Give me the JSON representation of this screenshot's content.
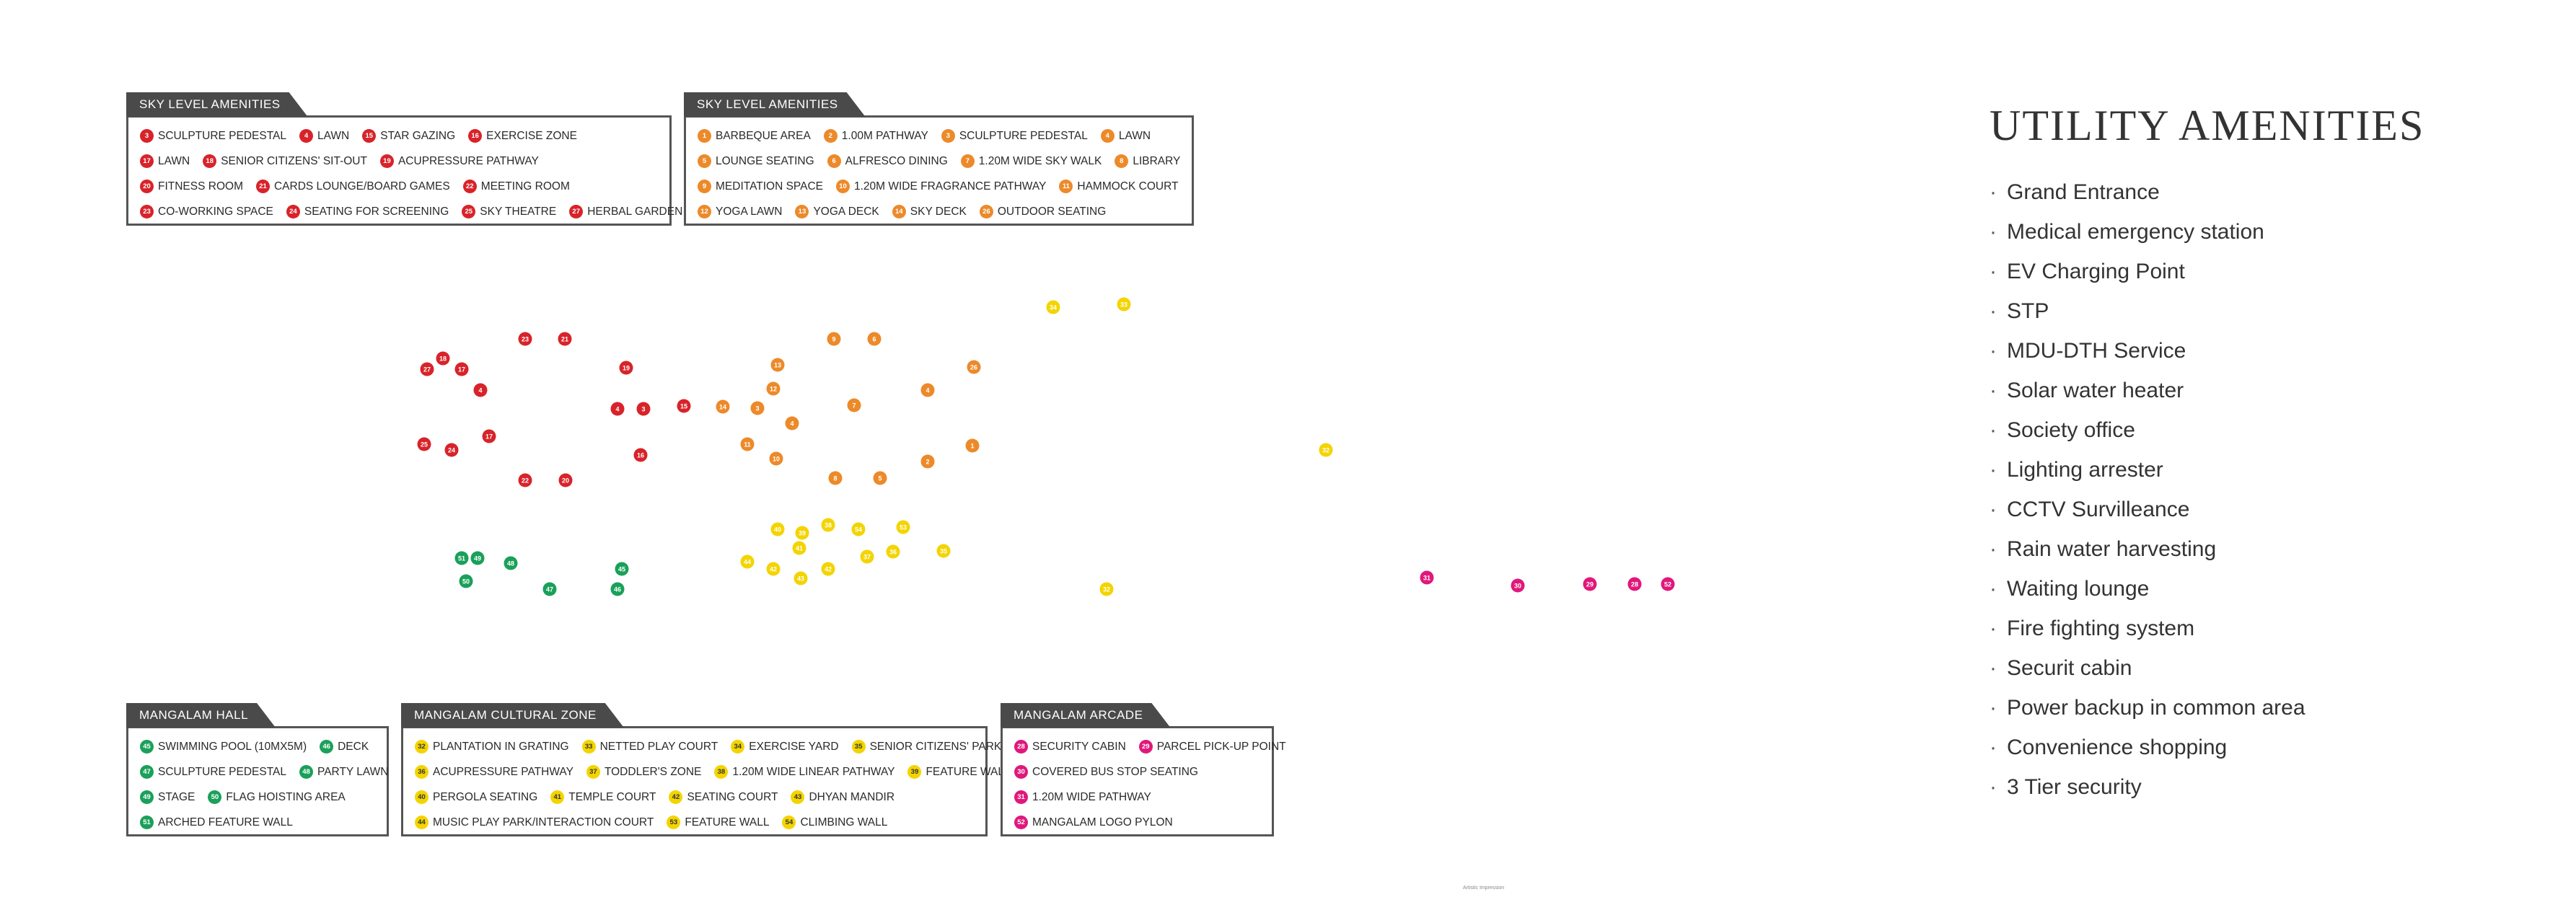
{
  "sky_left": {
    "title": "SKY LEVEL AMENITIES",
    "color": "#d8232a",
    "rows": [
      [
        {
          "n": "3",
          "t": "SCULPTURE PEDESTAL"
        },
        {
          "n": "4",
          "t": "LAWN"
        },
        {
          "n": "15",
          "t": "STAR GAZING"
        },
        {
          "n": "16",
          "t": "EXERCISE ZONE"
        }
      ],
      [
        {
          "n": "17",
          "t": "LAWN"
        },
        {
          "n": "18",
          "t": "SENIOR CITIZENS' SIT-OUT"
        },
        {
          "n": "19",
          "t": "ACUPRESSURE PATHWAY"
        }
      ],
      [
        {
          "n": "20",
          "t": "FITNESS ROOM"
        },
        {
          "n": "21",
          "t": "CARDS LOUNGE/BOARD GAMES"
        },
        {
          "n": "22",
          "t": "MEETING ROOM"
        }
      ],
      [
        {
          "n": "23",
          "t": "CO-WORKING SPACE"
        },
        {
          "n": "24",
          "t": "SEATING FOR SCREENING"
        },
        {
          "n": "25",
          "t": "SKY THEATRE"
        },
        {
          "n": "27",
          "t": "HERBAL GARDEN"
        }
      ]
    ]
  },
  "sky_right": {
    "title": "SKY LEVEL AMENITIES",
    "color": "#ec8a2a",
    "rows": [
      [
        {
          "n": "1",
          "t": "BARBEQUE AREA"
        },
        {
          "n": "2",
          "t": "1.00M PATHWAY"
        },
        {
          "n": "3",
          "t": "SCULPTURE PEDESTAL"
        },
        {
          "n": "4",
          "t": "LAWN"
        }
      ],
      [
        {
          "n": "5",
          "t": "LOUNGE SEATING"
        },
        {
          "n": "6",
          "t": "ALFRESCO DINING"
        },
        {
          "n": "7",
          "t": "1.20M WIDE SKY WALK"
        },
        {
          "n": "8",
          "t": "LIBRARY"
        }
      ],
      [
        {
          "n": "9",
          "t": "MEDITATION SPACE"
        },
        {
          "n": "10",
          "t": "1.20M WIDE FRAGRANCE PATHWAY"
        },
        {
          "n": "11",
          "t": "HAMMOCK COURT"
        }
      ],
      [
        {
          "n": "12",
          "t": "YOGA LAWN"
        },
        {
          "n": "13",
          "t": "YOGA DECK"
        },
        {
          "n": "14",
          "t": "SKY DECK"
        },
        {
          "n": "26",
          "t": "OUTDOOR SEATING"
        }
      ]
    ]
  },
  "hall": {
    "title": "MANGALAM HALL",
    "color": "#1aa05a",
    "rows": [
      [
        {
          "n": "45",
          "t": "SWIMMING POOL (10MX5M)"
        },
        {
          "n": "46",
          "t": "DECK"
        }
      ],
      [
        {
          "n": "47",
          "t": "SCULPTURE PEDESTAL"
        },
        {
          "n": "48",
          "t": "PARTY LAWN"
        }
      ],
      [
        {
          "n": "49",
          "t": "STAGE"
        },
        {
          "n": "50",
          "t": "FLAG HOISTING AREA"
        }
      ],
      [
        {
          "n": "51",
          "t": "ARCHED FEATURE WALL"
        }
      ]
    ]
  },
  "cultural": {
    "title": "MANGALAM CULTURAL ZONE",
    "color": "#f3d400",
    "rows": [
      [
        {
          "n": "32",
          "t": "PLANTATION IN GRATING"
        },
        {
          "n": "33",
          "t": "NETTED PLAY COURT"
        },
        {
          "n": "34",
          "t": "EXERCISE YARD"
        },
        {
          "n": "35",
          "t": "SENIOR CITIZENS' PARK"
        }
      ],
      [
        {
          "n": "36",
          "t": "ACUPRESSURE PATHWAY"
        },
        {
          "n": "37",
          "t": "TODDLER'S ZONE"
        },
        {
          "n": "38",
          "t": "1.20M WIDE LINEAR PATHWAY"
        },
        {
          "n": "39",
          "t": "FEATURE WALL"
        }
      ],
      [
        {
          "n": "40",
          "t": "PERGOLA SEATING"
        },
        {
          "n": "41",
          "t": "TEMPLE COURT"
        },
        {
          "n": "42",
          "t": "SEATING COURT"
        },
        {
          "n": "43",
          "t": "DHYAN MANDIR"
        }
      ],
      [
        {
          "n": "44",
          "t": "MUSIC PLAY PARK/INTERACTION COURT"
        },
        {
          "n": "53",
          "t": "FEATURE WALL"
        },
        {
          "n": "54",
          "t": "CLIMBING WALL"
        }
      ]
    ]
  },
  "arcade": {
    "title": "MANGALAM ARCADE",
    "color": "#e0187b",
    "rows": [
      [
        {
          "n": "28",
          "t": "SECURITY CABIN"
        },
        {
          "n": "29",
          "t": "PARCEL PICK-UP POINT"
        }
      ],
      [
        {
          "n": "30",
          "t": "COVERED BUS STOP SEATING"
        }
      ],
      [
        {
          "n": "31",
          "t": "1.20M WIDE PATHWAY"
        }
      ],
      [
        {
          "n": "52",
          "t": "MANGALAM LOGO PYLON"
        }
      ]
    ]
  },
  "utility": {
    "title": "UTILITY AMENITIES",
    "items": [
      "Grand Entrance",
      "Medical emergency station",
      "EV Charging Point",
      "STP",
      "MDU-DTH Service",
      "Solar water heater",
      "Society office",
      "Lighting arrester",
      "CCTV Survilleance",
      "Rain water harvesting",
      "Waiting lounge",
      "Fire fighting system",
      "Securit cabin",
      "Power backup in common area",
      "Convenience shopping",
      "3 Tier security"
    ]
  },
  "map_markers": [
    {
      "n": "23",
      "c": "red"
    },
    {
      "n": "21",
      "c": "red"
    },
    {
      "n": "18",
      "c": "red"
    },
    {
      "n": "27",
      "c": "red"
    },
    {
      "n": "17",
      "c": "red"
    },
    {
      "n": "19",
      "c": "red"
    },
    {
      "n": "4",
      "c": "red"
    },
    {
      "n": "4",
      "c": "red"
    },
    {
      "n": "3",
      "c": "red"
    },
    {
      "n": "15",
      "c": "red"
    },
    {
      "n": "25",
      "c": "red"
    },
    {
      "n": "24",
      "c": "red"
    },
    {
      "n": "17",
      "c": "red"
    },
    {
      "n": "16",
      "c": "red"
    },
    {
      "n": "22",
      "c": "red"
    },
    {
      "n": "20",
      "c": "red"
    },
    {
      "n": "9",
      "c": "orange"
    },
    {
      "n": "6",
      "c": "orange"
    },
    {
      "n": "13",
      "c": "orange"
    },
    {
      "n": "26",
      "c": "orange"
    },
    {
      "n": "12",
      "c": "orange"
    },
    {
      "n": "4",
      "c": "orange"
    },
    {
      "n": "14",
      "c": "orange"
    },
    {
      "n": "3",
      "c": "orange"
    },
    {
      "n": "7",
      "c": "orange"
    },
    {
      "n": "4",
      "c": "orange"
    },
    {
      "n": "11",
      "c": "orange"
    },
    {
      "n": "10",
      "c": "orange"
    },
    {
      "n": "1",
      "c": "orange"
    },
    {
      "n": "2",
      "c": "orange"
    },
    {
      "n": "8",
      "c": "orange"
    },
    {
      "n": "5",
      "c": "orange"
    },
    {
      "n": "34",
      "c": "yellow"
    },
    {
      "n": "33",
      "c": "yellow"
    },
    {
      "n": "32",
      "c": "yellow"
    },
    {
      "n": "40",
      "c": "yellow"
    },
    {
      "n": "39",
      "c": "yellow"
    },
    {
      "n": "38",
      "c": "yellow"
    },
    {
      "n": "54",
      "c": "yellow"
    },
    {
      "n": "53",
      "c": "yellow"
    },
    {
      "n": "41",
      "c": "yellow"
    },
    {
      "n": "36",
      "c": "yellow"
    },
    {
      "n": "35",
      "c": "yellow"
    },
    {
      "n": "37",
      "c": "yellow"
    },
    {
      "n": "44",
      "c": "yellow"
    },
    {
      "n": "42",
      "c": "yellow"
    },
    {
      "n": "42",
      "c": "yellow"
    },
    {
      "n": "43",
      "c": "yellow"
    },
    {
      "n": "32",
      "c": "yellow"
    },
    {
      "n": "51",
      "c": "green"
    },
    {
      "n": "49",
      "c": "green"
    },
    {
      "n": "48",
      "c": "green"
    },
    {
      "n": "50",
      "c": "green"
    },
    {
      "n": "47",
      "c": "green"
    },
    {
      "n": "45",
      "c": "green"
    },
    {
      "n": "46",
      "c": "green"
    },
    {
      "n": "31",
      "c": "pink"
    },
    {
      "n": "30",
      "c": "pink"
    },
    {
      "n": "29",
      "c": "pink"
    },
    {
      "n": "28",
      "c": "pink"
    },
    {
      "n": "52",
      "c": "pink"
    }
  ],
  "footnote": "Artistic Impression"
}
